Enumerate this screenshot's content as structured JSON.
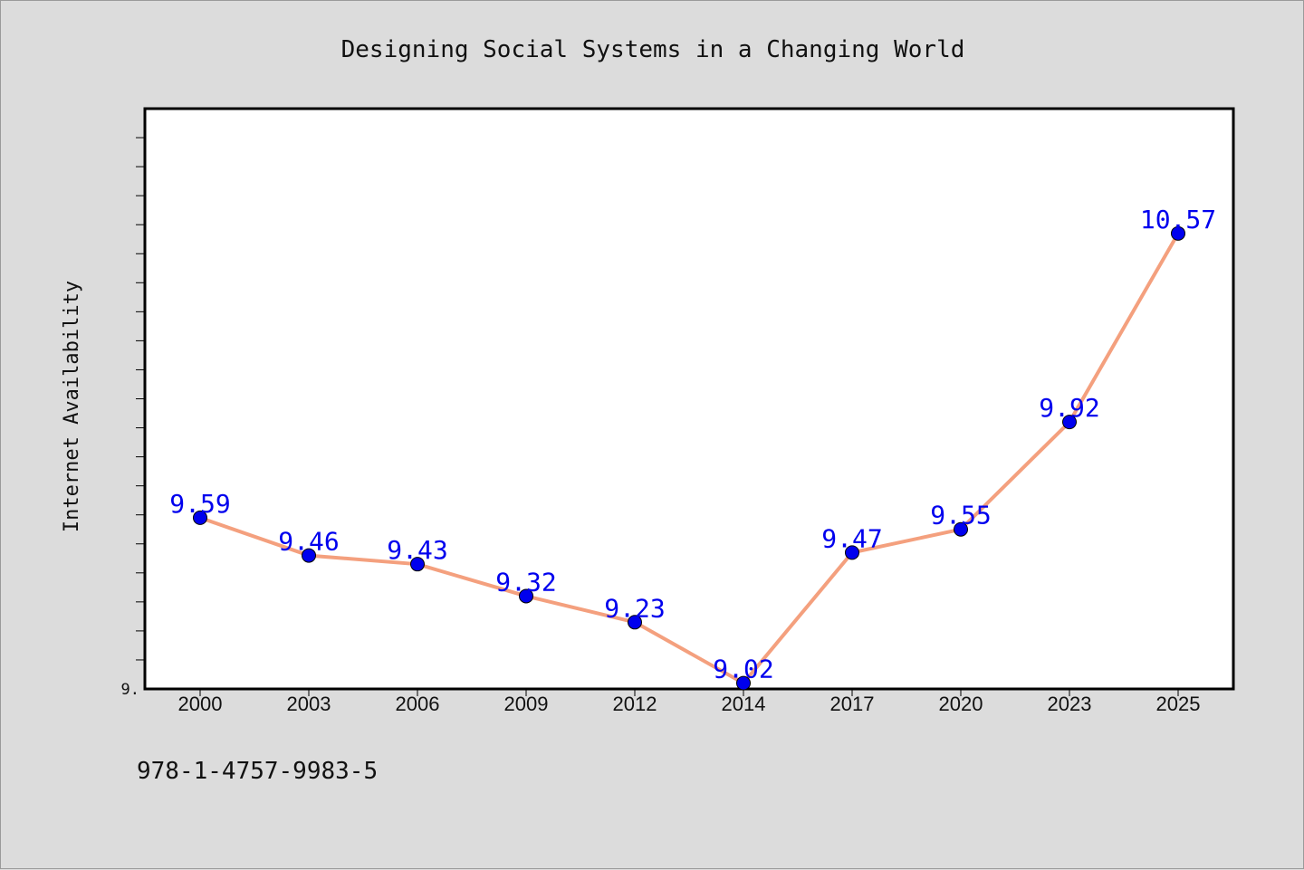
{
  "chart_data": {
    "type": "line",
    "title": "Designing Social Systems in a Changing World",
    "xlabel": "",
    "ylabel": "Internet Availability",
    "categories": [
      "2000",
      "2003",
      "2006",
      "2009",
      "2012",
      "2014",
      "2017",
      "2020",
      "2023",
      "2025"
    ],
    "series": [
      {
        "values": [
          9.59,
          9.46,
          9.43,
          9.32,
          9.23,
          9.02,
          9.47,
          9.55,
          9.92,
          10.57
        ],
        "labels": [
          "9.59",
          "9.46",
          "9.43",
          "9.32",
          "9.23",
          "9.02",
          "9.47",
          "9.55",
          "9.92",
          "10.57"
        ]
      }
    ],
    "ylim": [
      9.0,
      11.0
    ],
    "ytick_labels": [
      "9."
    ],
    "grid": false,
    "legend": "none",
    "colors": {
      "line": "#f4a07e",
      "marker": "#0000ee",
      "label": "#0000ee",
      "plot_bg": "#ffffff",
      "page_bg": "#dcdcdc"
    }
  },
  "footer": {
    "isbn": "978-1-4757-9983-5"
  }
}
